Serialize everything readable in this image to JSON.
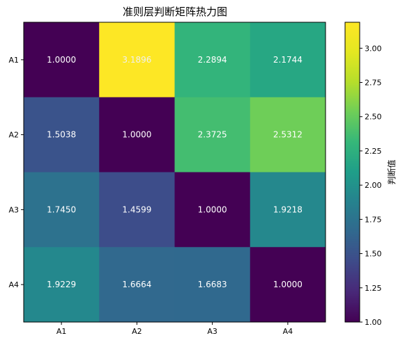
{
  "chart_data": {
    "type": "heatmap",
    "title": "准则层判断矩阵热力图",
    "x_categories": [
      "A1",
      "A2",
      "A3",
      "A4"
    ],
    "y_categories": [
      "A1",
      "A2",
      "A3",
      "A4"
    ],
    "values": [
      [
        1.0,
        3.1896,
        2.2894,
        2.1744
      ],
      [
        1.5038,
        1.0,
        2.3725,
        2.5312
      ],
      [
        1.745,
        1.4599,
        1.0,
        1.9218
      ],
      [
        1.9229,
        1.6664,
        1.6683,
        1.0
      ]
    ],
    "value_labels": [
      [
        "1.0000",
        "3.1896",
        "2.2894",
        "2.1744"
      ],
      [
        "1.5038",
        "1.0000",
        "2.3725",
        "2.5312"
      ],
      [
        "1.7450",
        "1.4599",
        "1.0000",
        "1.9218"
      ],
      [
        "1.9229",
        "1.6664",
        "1.6683",
        "1.0000"
      ]
    ],
    "colormap": "viridis",
    "vmin": 1.0,
    "vmax": 3.1896,
    "colorbar": {
      "label": "判断值",
      "ticks": [
        1.0,
        1.25,
        1.5,
        1.75,
        2.0,
        2.25,
        2.5,
        2.75,
        3.0
      ],
      "tick_labels": [
        "1.00",
        "1.25",
        "1.50",
        "1.75",
        "2.00",
        "2.25",
        "2.50",
        "2.75",
        "3.00"
      ]
    }
  }
}
